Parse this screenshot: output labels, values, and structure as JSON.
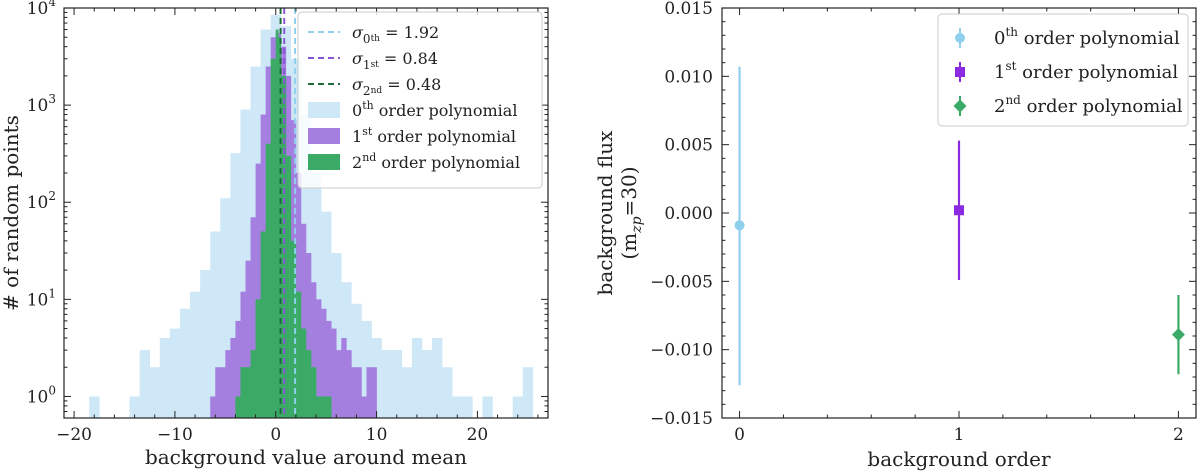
{
  "chart_data": [
    {
      "type": "histogram",
      "title": "",
      "xlabel": "background value around mean",
      "ylabel": "# of random points",
      "xlim": [
        -21,
        27
      ],
      "ylim": [
        0.6,
        10000
      ],
      "yscale": "log",
      "xticks": [
        -20,
        -10,
        0,
        10,
        20
      ],
      "xtick_labels": [
        "−20",
        "−10",
        "0",
        "10",
        "20"
      ],
      "yticks": [
        1,
        10,
        100,
        1000,
        10000
      ],
      "ytick_labels": [
        {
          "base": "10",
          "exp": "0"
        },
        {
          "base": "10",
          "exp": "1"
        },
        {
          "base": "10",
          "exp": "2"
        },
        {
          "base": "10",
          "exp": "3"
        },
        {
          "base": "10",
          "exp": "4"
        }
      ],
      "legend_position": "top-right",
      "vlines": [
        {
          "x": 1.92,
          "color": "#8ecfee",
          "legend_prefix": "σ",
          "legend_sub": "0",
          "legend_sup": "th",
          "legend_value": " = 1.92"
        },
        {
          "x": 0.84,
          "color": "#8a55d6",
          "legend_prefix": "σ",
          "legend_sub": "1",
          "legend_sup": "st",
          "legend_value": " = 0.84"
        },
        {
          "x": 0.48,
          "color": "#1e6b3c",
          "legend_prefix": "σ",
          "legend_sub": "2",
          "legend_sup": "nd",
          "legend_value": " = 0.48"
        }
      ],
      "series": [
        {
          "name": "0th order polynomial",
          "label_main": "0",
          "label_sup": "th",
          "label_rest": " order polynomial",
          "color": "#cfe8f8",
          "bins": [
            [
              -18.5,
              -17.5,
              1
            ],
            [
              -14.5,
              -13.5,
              1
            ],
            [
              -13.5,
              -12.5,
              3
            ],
            [
              -12.5,
              -11.5,
              2
            ],
            [
              -11.5,
              -10.5,
              4
            ],
            [
              -10.5,
              -9.5,
              5
            ],
            [
              -9.5,
              -8.5,
              8
            ],
            [
              -8.5,
              -7.5,
              12
            ],
            [
              -7.5,
              -6.5,
              20
            ],
            [
              -6.5,
              -5.5,
              50
            ],
            [
              -5.5,
              -4.5,
              110
            ],
            [
              -4.5,
              -3.5,
              320
            ],
            [
              -3.5,
              -2.5,
              900
            ],
            [
              -2.5,
              -1.5,
              2500
            ],
            [
              -1.5,
              -0.5,
              6000
            ],
            [
              -0.5,
              0.5,
              8500
            ],
            [
              0.5,
              1.5,
              6500
            ],
            [
              1.5,
              2.5,
              3000
            ],
            [
              2.5,
              3.5,
              800
            ],
            [
              3.5,
              4.5,
              200
            ],
            [
              4.5,
              5.5,
              80
            ],
            [
              5.5,
              6.5,
              30
            ],
            [
              6.5,
              7.5,
              15
            ],
            [
              7.5,
              8.5,
              9
            ],
            [
              8.5,
              9.5,
              6
            ],
            [
              9.5,
              10.5,
              4
            ],
            [
              10.5,
              11.5,
              3
            ],
            [
              11.5,
              12.5,
              3
            ],
            [
              12.5,
              13.5,
              2
            ],
            [
              13.5,
              14.5,
              4
            ],
            [
              14.5,
              15.5,
              3
            ],
            [
              15.5,
              16.5,
              4
            ],
            [
              16.5,
              17.5,
              2
            ],
            [
              17.5,
              18.5,
              1
            ],
            [
              18.5,
              19.5,
              1
            ],
            [
              20.5,
              21.5,
              1
            ],
            [
              23.5,
              24.5,
              1
            ],
            [
              24.5,
              25.5,
              2
            ]
          ]
        },
        {
          "name": "1st order polynomial",
          "label_main": "1",
          "label_sup": "st",
          "label_rest": " order polynomial",
          "color": "#a57fe0",
          "bins": [
            [
              -6.5,
              -6.0,
              1
            ],
            [
              -6.0,
              -5.5,
              2
            ],
            [
              -5.5,
              -5.0,
              2
            ],
            [
              -5.0,
              -4.5,
              3
            ],
            [
              -4.5,
              -4.0,
              4
            ],
            [
              -4.0,
              -3.5,
              6
            ],
            [
              -3.5,
              -3.0,
              12
            ],
            [
              -3.0,
              -2.5,
              25
            ],
            [
              -2.5,
              -2.0,
              70
            ],
            [
              -2.0,
              -1.5,
              250
            ],
            [
              -1.5,
              -1.0,
              800
            ],
            [
              -1.0,
              -0.5,
              2500
            ],
            [
              -0.5,
              0.0,
              5000
            ],
            [
              0.0,
              0.5,
              5500
            ],
            [
              0.5,
              1.0,
              4000
            ],
            [
              1.0,
              1.5,
              2000
            ],
            [
              1.5,
              2.0,
              700
            ],
            [
              2.0,
              2.5,
              200
            ],
            [
              2.5,
              3.0,
              60
            ],
            [
              3.0,
              3.5,
              30
            ],
            [
              3.5,
              4.0,
              15
            ],
            [
              4.0,
              4.5,
              10
            ],
            [
              4.5,
              5.0,
              8
            ],
            [
              5.0,
              5.5,
              6
            ],
            [
              5.5,
              6.0,
              5
            ],
            [
              6.0,
              6.5,
              3
            ],
            [
              6.5,
              7.0,
              4
            ],
            [
              7.0,
              7.5,
              3
            ],
            [
              7.5,
              8.0,
              2
            ],
            [
              8.0,
              8.5,
              2
            ],
            [
              8.5,
              9.0,
              1
            ],
            [
              9.0,
              9.5,
              2
            ],
            [
              9.5,
              10.0,
              2
            ]
          ]
        },
        {
          "name": "2nd order polynomial",
          "label_main": "2",
          "label_sup": "nd",
          "label_rest": " order polynomial",
          "color": "#3aaa66",
          "bins": [
            [
              -4.0,
              -3.5,
              1
            ],
            [
              -3.5,
              -3.0,
              2
            ],
            [
              -3.0,
              -2.5,
              2
            ],
            [
              -2.5,
              -2.0,
              3
            ],
            [
              -2.0,
              -1.5,
              10
            ],
            [
              -1.5,
              -1.0,
              50
            ],
            [
              -1.0,
              -0.5,
              400
            ],
            [
              -0.5,
              0.0,
              3000
            ],
            [
              0.0,
              0.25,
              6000
            ],
            [
              0.25,
              0.5,
              5000
            ],
            [
              0.5,
              1.0,
              2000
            ],
            [
              1.0,
              1.5,
              300
            ],
            [
              1.5,
              2.0,
              40
            ],
            [
              2.0,
              2.5,
              12
            ],
            [
              2.5,
              3.0,
              5
            ],
            [
              3.0,
              3.5,
              3
            ],
            [
              3.5,
              4.0,
              2
            ],
            [
              4.0,
              4.5,
              1
            ],
            [
              4.5,
              5.0,
              1
            ],
            [
              5.0,
              5.5,
              1
            ]
          ]
        }
      ]
    },
    {
      "type": "scatter",
      "title": "",
      "xlabel": "background order",
      "ylabel_line1": "background flux",
      "ylabel_line2_main": "(m",
      "ylabel_line2_sub": "zp",
      "ylabel_line2_rest": "=30)",
      "xlim": [
        -0.08,
        2.08
      ],
      "ylim": [
        -0.015,
        0.015
      ],
      "xticks": [
        0,
        1,
        2
      ],
      "xtick_labels": [
        "0",
        "1",
        "2"
      ],
      "yticks": [
        -0.015,
        -0.01,
        -0.005,
        0.0,
        0.005,
        0.01,
        0.015
      ],
      "ytick_labels": [
        "−0.015",
        "−0.010",
        "−0.005",
        "0.000",
        "0.005",
        "0.010",
        "0.015"
      ],
      "legend_position": "top-right",
      "series": [
        {
          "name": "0th order polynomial",
          "label_main": "0",
          "label_sup": "th",
          "label_rest": " order polynomial",
          "color": "#8ecfee",
          "marker": "circle",
          "x": 0,
          "y": -0.0009,
          "yerr_low": -0.0126,
          "yerr_high": 0.0107
        },
        {
          "name": "1st order polynomial",
          "label_main": "1",
          "label_sup": "st",
          "label_rest": " order polynomial",
          "color": "#8a2be2",
          "marker": "square",
          "x": 1,
          "y": 0.0002,
          "yerr_low": -0.0049,
          "yerr_high": 0.0053
        },
        {
          "name": "2nd order polynomial",
          "label_main": "2",
          "label_sup": "nd",
          "label_rest": " order polynomial",
          "color": "#3aaa66",
          "marker": "diamond",
          "x": 2,
          "y": -0.0089,
          "yerr_low": -0.0118,
          "yerr_high": -0.006
        }
      ]
    }
  ]
}
